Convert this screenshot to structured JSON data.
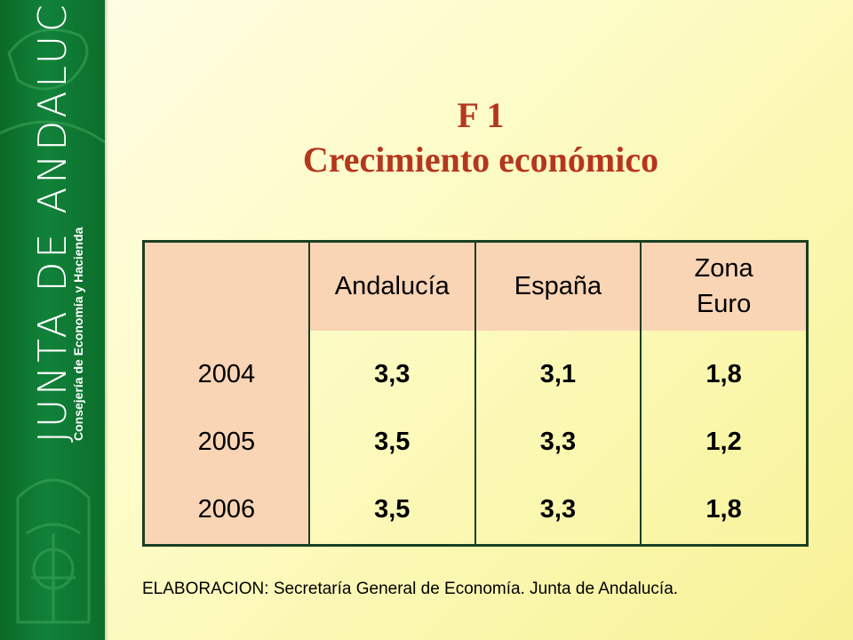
{
  "sidebar": {
    "brand": "JUNTA DE ANDALUCIA",
    "subbrand": "Consejería de Economía y Hacienda"
  },
  "title": {
    "line1": "F 1",
    "line2": "Crecimiento económico"
  },
  "table": {
    "headers": [
      "",
      "Andalucía",
      "España",
      "Zona Euro"
    ],
    "rows": [
      {
        "year": "2004",
        "values": [
          "3,3",
          "3,1",
          "1,8"
        ]
      },
      {
        "year": "2005",
        "values": [
          "3,5",
          "3,3",
          "1,2"
        ]
      },
      {
        "year": "2006",
        "values": [
          "3,5",
          "3,3",
          "1,8"
        ]
      }
    ]
  },
  "footer": "ELABORACION: Secretaría General de Economía. Junta de Andalucía.",
  "colors": {
    "title": "#b5361e",
    "sidebar": "#11823a",
    "header_fill": "#f9d4b5",
    "border": "#1a3f22"
  }
}
